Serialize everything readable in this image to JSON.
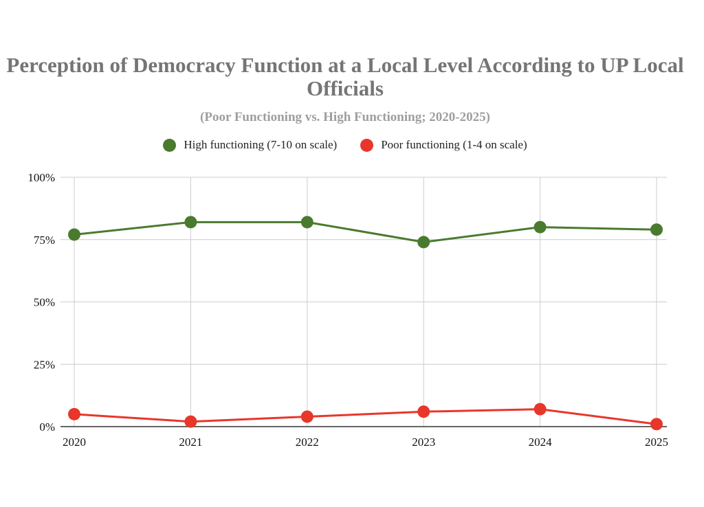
{
  "chart_data": {
    "type": "line",
    "title": "Perception of Democracy Function at a Local Level According to UP Local Officials",
    "subtitle": "(Poor Functioning vs. High Functioning; 2020-2025)",
    "categories": [
      "2020",
      "2021",
      "2022",
      "2023",
      "2024",
      "2025"
    ],
    "series": [
      {
        "name": "High functioning (7-10 on scale)",
        "color": "#4a7a2e",
        "values": [
          77,
          82,
          82,
          74,
          80,
          79
        ]
      },
      {
        "name": "Poor functioning (1-4 on scale)",
        "color": "#e8362a",
        "values": [
          5,
          2,
          4,
          6,
          7,
          1
        ]
      }
    ],
    "ylim": [
      0,
      100
    ],
    "yticks": [
      0,
      25,
      50,
      75,
      100
    ],
    "ytick_labels": [
      "0%",
      "25%",
      "50%",
      "75%",
      "100%"
    ],
    "xlabel": "",
    "ylabel": "",
    "grid": true,
    "legend_position": "top"
  }
}
